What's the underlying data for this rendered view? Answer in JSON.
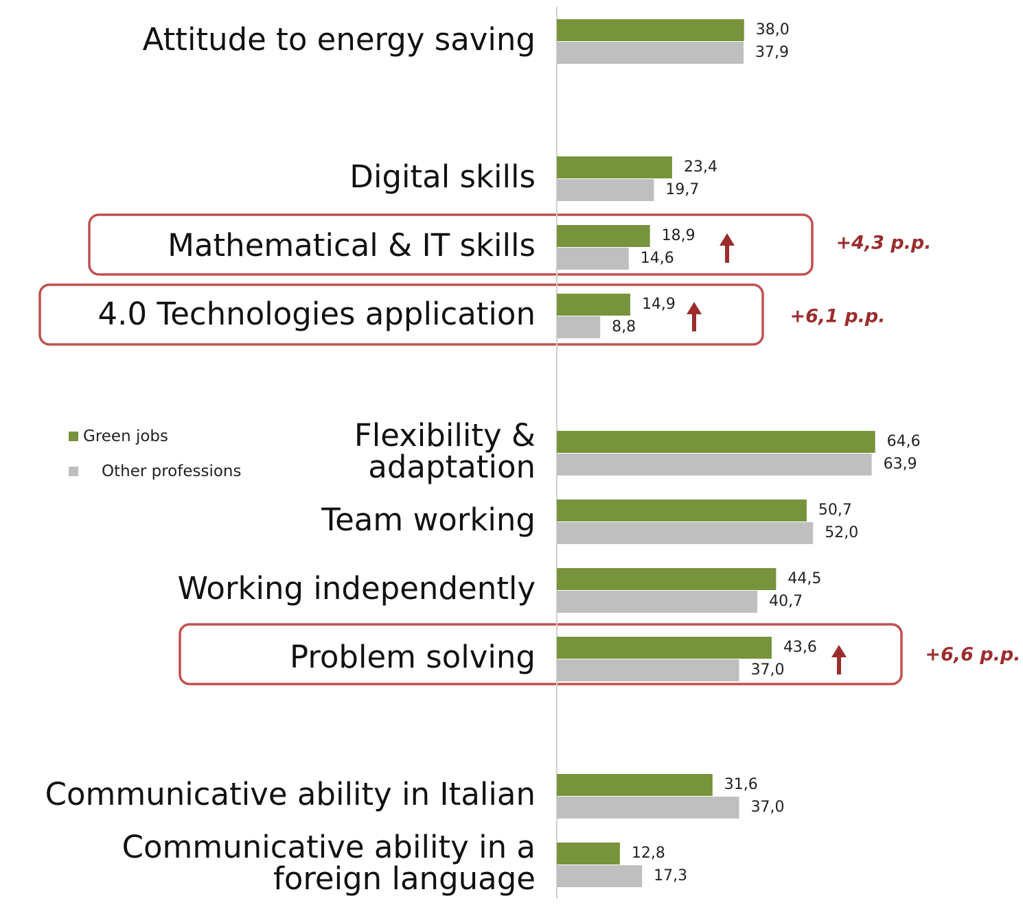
{
  "chart_data": {
    "type": "bar",
    "orientation": "horizontal",
    "categories": [
      "Attitude to energy saving",
      null,
      "Digital skills",
      "Mathematical & IT skills",
      "4.0 Technologies application",
      null,
      "Flexibility &\nadaptation",
      "Team working",
      "Working independently",
      "Problem solving",
      null,
      "Communicative ability in Italian",
      "Communicative ability in a\nforeign language"
    ],
    "series": [
      {
        "name": "Green jobs",
        "color": "#77933c",
        "values": [
          38.0,
          null,
          23.4,
          18.9,
          14.9,
          null,
          64.6,
          50.7,
          44.5,
          43.6,
          null,
          31.6,
          12.8
        ],
        "value_labels": [
          "38,0",
          null,
          "23,4",
          "18,9",
          "14,9",
          null,
          "64,6",
          "50,7",
          "44,5",
          "43,6",
          null,
          "31,6",
          "12,8"
        ]
      },
      {
        "name": "Other professions",
        "color": "#bfbfbf",
        "values": [
          37.9,
          null,
          19.7,
          14.6,
          8.8,
          null,
          63.9,
          52.0,
          40.7,
          37.0,
          null,
          37.0,
          17.3
        ],
        "value_labels": [
          "37,9",
          null,
          "19,7",
          "14,6",
          "8,8",
          null,
          "63,9",
          "52,0",
          "40,7",
          "37,0",
          null,
          "37,0",
          "17,3"
        ]
      }
    ],
    "xlim": [
      0,
      94.6
    ],
    "legend": "left",
    "highlights": [
      {
        "category": "Mathematical & IT skills",
        "label": "+4,3 p.p.",
        "color": "#9b2d2d"
      },
      {
        "category": "4.0 Technologies application",
        "label": "+6,1 p.p.",
        "color": "#9b2d2d"
      },
      {
        "category": "Problem solving",
        "label": "+6,6 p.p.",
        "color": "#9b2d2d"
      }
    ]
  }
}
